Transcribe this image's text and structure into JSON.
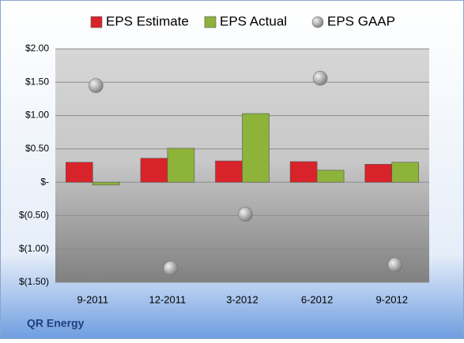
{
  "chart_data": {
    "type": "bar",
    "title": "QR Energy",
    "categories": [
      "9-2011",
      "12-2011",
      "3-2012",
      "6-2012",
      "9-2012"
    ],
    "series": [
      {
        "name": "EPS Estimate",
        "color": "#d9232a",
        "values": [
          0.3,
          0.36,
          0.32,
          0.31,
          0.27
        ]
      },
      {
        "name": "EPS Actual",
        "color": "#8db33a",
        "values": [
          -0.04,
          0.51,
          1.03,
          0.18,
          0.3
        ]
      },
      {
        "name": "EPS GAAP",
        "color": "#a8a8a8",
        "type": "scatter",
        "values": [
          1.45,
          -1.29,
          -0.48,
          1.56,
          -1.24
        ]
      }
    ],
    "ylim": [
      -1.5,
      2.0
    ],
    "yticks": [
      {
        "value": -1.5,
        "label": "$(1.50)"
      },
      {
        "value": -1.0,
        "label": "$(1.00)"
      },
      {
        "value": -0.5,
        "label": "$(0.50)"
      },
      {
        "value": 0,
        "label": "$-"
      },
      {
        "value": 0.5,
        "label": "$0.50"
      },
      {
        "value": 1.0,
        "label": "$1.00"
      },
      {
        "value": 1.5,
        "label": "$1.50"
      },
      {
        "value": 2.0,
        "label": "$2.00"
      }
    ],
    "grid": true,
    "legend": "top"
  }
}
